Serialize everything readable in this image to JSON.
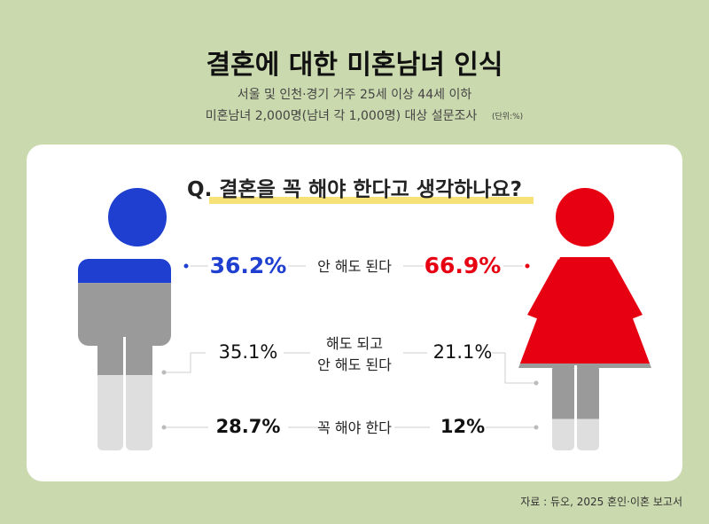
{
  "chart_data": {
    "type": "pictogram",
    "title": "결혼에 대한 미혼남녀 인식",
    "subtitle_lines": [
      "서울 및 인천·경기 거주 25세 이상 44세 이하",
      "미혼남녀 2,000명(남녀 각 1,000명) 대상 설문조사"
    ],
    "unit_note": "(단위:%)",
    "question": "Q. 결혼을 꼭 해야 한다고 생각하나요?",
    "categories": [
      "안 해도 된다",
      "해도 되고\n안 해도 된다",
      "꼭 해야 한다"
    ],
    "ylim": [
      0,
      100
    ],
    "series": [
      {
        "colors": [
          "#1e3fd0",
          "#9a9a9a",
          "#dedede"
        ],
        "values": [
          36.2,
          35.1,
          28.7
        ],
        "value_labels": [
          "36.2%",
          "35.1%",
          "28.7%"
        ]
      },
      {
        "colors": [
          "#e60012",
          "#9a9a9a",
          "#dedede"
        ],
        "values": [
          66.9,
          21.1,
          12
        ],
        "value_labels": [
          "66.9%",
          "21.1%",
          "12%"
        ]
      }
    ],
    "source": "자료 : 듀오, 2025 혼인·이혼 보고서"
  }
}
